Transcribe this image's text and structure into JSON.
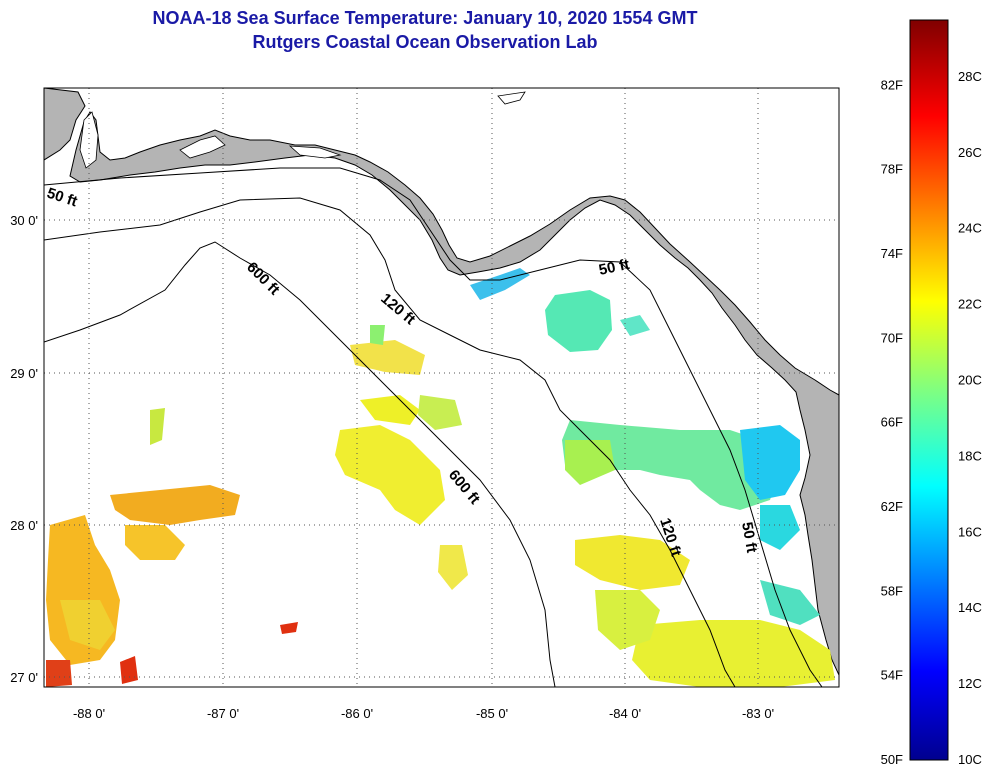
{
  "title": {
    "line1": "NOAA-18 Sea Surface Temperature:  January 10, 2020 1554 GMT",
    "line2": "Rutgers Coastal Ocean Observation Lab"
  },
  "map": {
    "lon_labels": [
      "-88 0'",
      "-87 0'",
      "-86 0'",
      "-85 0'",
      "-84 0'",
      "-83 0'"
    ],
    "lat_labels": [
      "30 0'",
      "29 0'",
      "28 0'",
      "27 0'"
    ],
    "contours": [
      {
        "label": "50 ft"
      },
      {
        "label": "600 ft"
      },
      {
        "label": "120 ft"
      },
      {
        "label": "600 ft"
      },
      {
        "label": "50 ft"
      },
      {
        "label": "120 ft"
      },
      {
        "label": "50 ft"
      }
    ],
    "colors": {
      "land": "#b4b4b4",
      "ocean_no_data": "#ffffff",
      "grid": "#555555"
    }
  },
  "colorbar": {
    "fahrenheit_labels": [
      "82F",
      "78F",
      "74F",
      "70F",
      "66F",
      "62F",
      "58F",
      "54F",
      "50F"
    ],
    "celsius_labels": [
      "28C",
      "26C",
      "24C",
      "22C",
      "20C",
      "18C",
      "16C",
      "14C",
      "12C",
      "10C"
    ],
    "scale_min_c": 10,
    "scale_max_c": 29.5,
    "colormap": "jet"
  }
}
